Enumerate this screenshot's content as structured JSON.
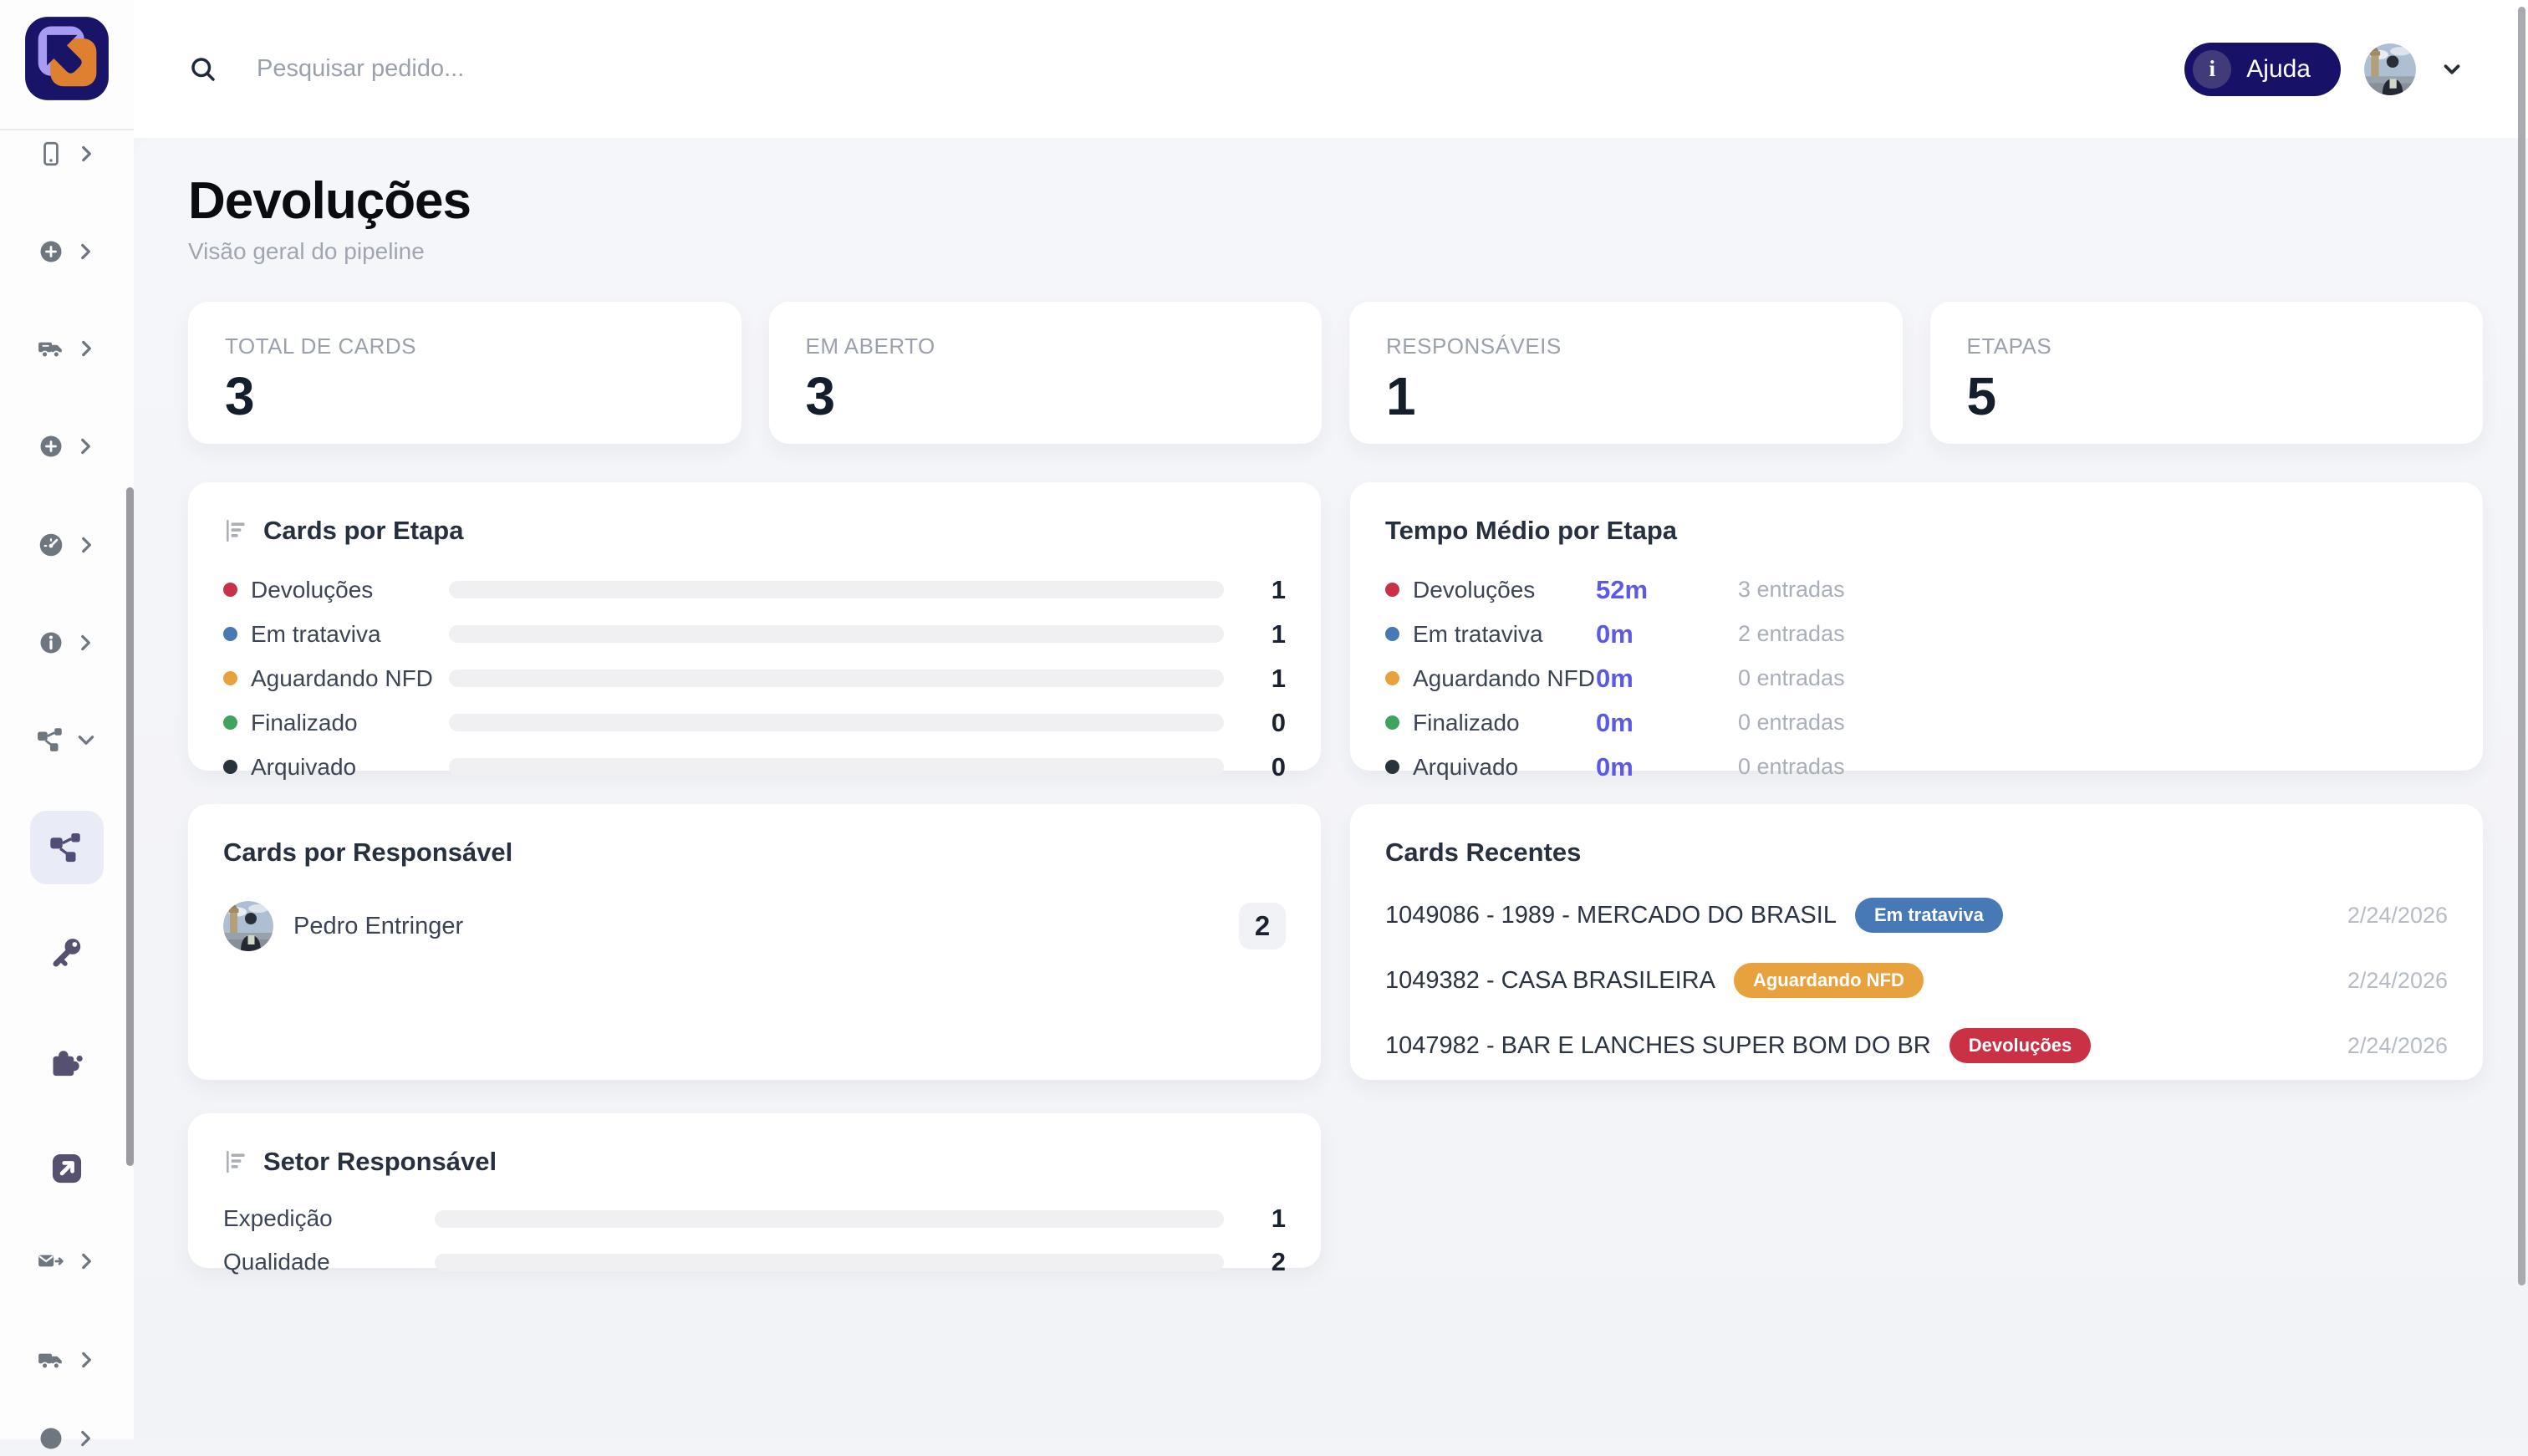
{
  "topbar": {
    "search_placeholder": "Pesquisar pedido...",
    "help_label": "Ajuda",
    "help_icon_glyph": "i"
  },
  "page": {
    "title": "Devoluções",
    "subtitle": "Visão geral do pipeline"
  },
  "stats": [
    {
      "label": "TOTAL DE CARDS",
      "value": "3"
    },
    {
      "label": "EM ABERTO",
      "value": "3"
    },
    {
      "label": "RESPONSÁVEIS",
      "value": "1"
    },
    {
      "label": "ETAPAS",
      "value": "5"
    }
  ],
  "etapa": {
    "title": "Cards por Etapa",
    "rows": [
      {
        "label": "Devoluções",
        "color": "#c9314b",
        "pct": 100,
        "value": "1"
      },
      {
        "label": "Em trataviva",
        "color": "#4679b5",
        "pct": 100,
        "value": "1"
      },
      {
        "label": "Aguardando NFD",
        "color": "#e8a23d",
        "pct": 100,
        "value": "1"
      },
      {
        "label": "Finalizado",
        "color": "#3fa45c",
        "pct": 1.5,
        "value": "0"
      },
      {
        "label": "Arquivado",
        "color": "#29333b",
        "pct": 1.5,
        "value": "0"
      }
    ]
  },
  "tempo": {
    "title": "Tempo Médio por Etapa",
    "rows": [
      {
        "label": "Devoluções",
        "color": "#c9314b",
        "time": "52m",
        "entries": "3 entradas"
      },
      {
        "label": "Em trataviva",
        "color": "#4679b5",
        "time": "0m",
        "entries": "2 entradas"
      },
      {
        "label": "Aguardando NFD",
        "color": "#e8a23d",
        "time": "0m",
        "entries": "0 entradas"
      },
      {
        "label": "Finalizado",
        "color": "#3fa45c",
        "time": "0m",
        "entries": "0 entradas"
      },
      {
        "label": "Arquivado",
        "color": "#29333b",
        "time": "0m",
        "entries": "0 entradas"
      }
    ]
  },
  "responsavel": {
    "title": "Cards por Responsável",
    "rows": [
      {
        "name": "Pedro Entringer",
        "count": "2"
      }
    ]
  },
  "recentes": {
    "title": "Cards Recentes",
    "items": [
      {
        "title": "1049086 - 1989 - MERCADO DO BRASIL",
        "badge": "Em trataviva",
        "badge_color": "#4679b5",
        "date": "2/24/2026"
      },
      {
        "title": "1049382 - CASA BRASILEIRA",
        "badge": "Aguardando NFD",
        "badge_color": "#e8a23d",
        "date": "2/24/2026"
      },
      {
        "title": "1047982 - BAR E LANCHES SUPER BOM DO BR",
        "badge": "Devoluções",
        "badge_color": "#cb3145",
        "date": "2/24/2026"
      }
    ]
  },
  "setor": {
    "title": "Setor Responsável",
    "bar_color": "#12106b",
    "rows": [
      {
        "label": "Expedição",
        "pct": 50,
        "value": "1"
      },
      {
        "label": "Qualidade",
        "pct": 100,
        "value": "2"
      }
    ]
  },
  "colors": {
    "accent_navy": "#171268",
    "accent_indigo": "#5c59e6",
    "status_red": "#cb3145",
    "status_blue": "#4679b5",
    "status_orange": "#e8a23d",
    "status_green": "#3fa45c",
    "status_dark": "#29333b"
  },
  "chart_data": [
    {
      "type": "bar",
      "title": "Cards por Etapa",
      "categories": [
        "Devoluções",
        "Em trataviva",
        "Aguardando NFD",
        "Finalizado",
        "Arquivado"
      ],
      "values": [
        1,
        1,
        1,
        0,
        0
      ]
    },
    {
      "type": "table",
      "title": "Tempo Médio por Etapa",
      "rows": [
        [
          "Devoluções",
          "52m",
          "3 entradas"
        ],
        [
          "Em trataviva",
          "0m",
          "2 entradas"
        ],
        [
          "Aguardando NFD",
          "0m",
          "0 entradas"
        ],
        [
          "Finalizado",
          "0m",
          "0 entradas"
        ],
        [
          "Arquivado",
          "0m",
          "0 entradas"
        ]
      ]
    },
    {
      "type": "bar",
      "title": "Setor Responsável",
      "categories": [
        "Expedição",
        "Qualidade"
      ],
      "values": [
        1,
        2
      ]
    }
  ]
}
